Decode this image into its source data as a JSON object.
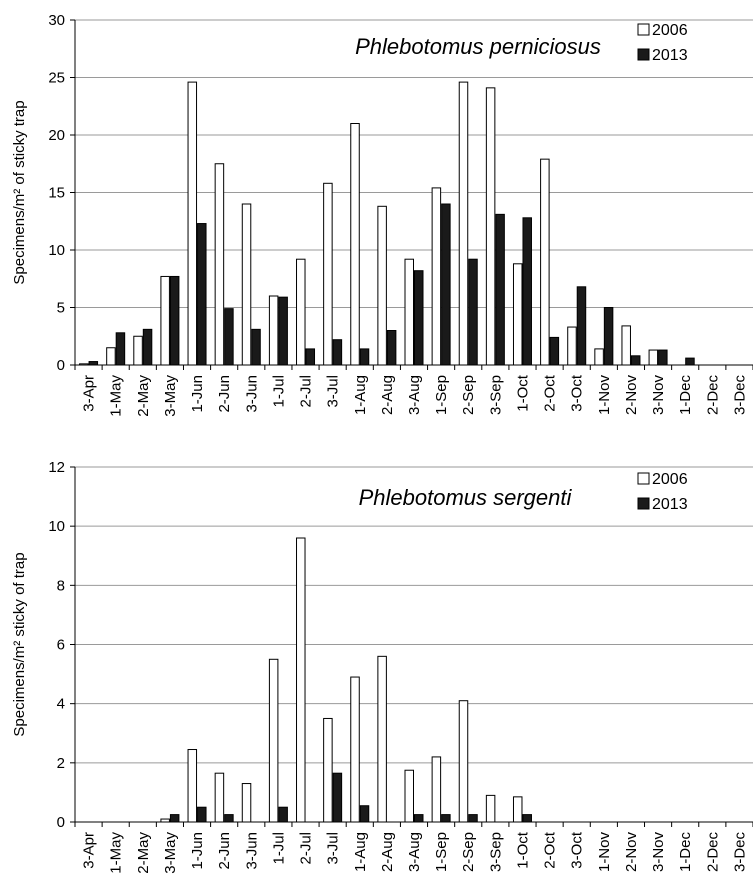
{
  "chart_data": [
    {
      "type": "bar",
      "title": "Phlebotomus perniciosus",
      "xlabel": "",
      "ylabel": "Specimens/m² of sticky trap",
      "ylim": [
        0,
        30
      ],
      "yticks": [
        0,
        5,
        10,
        15,
        20,
        25,
        30
      ],
      "grid": true,
      "legend": "top-right",
      "categories": [
        "3-Apr",
        "1-May",
        "2-May",
        "3-May",
        "1-Jun",
        "2-Jun",
        "3-Jun",
        "1-Jul",
        "2-Jul",
        "3-Jul",
        "1-Aug",
        "2-Aug",
        "3-Aug",
        "1-Sep",
        "2-Sep",
        "3-Sep",
        "1-Oct",
        "2-Oct",
        "3-Oct",
        "1-Nov",
        "2-Nov",
        "3-Nov",
        "1-Dec",
        "2-Dec",
        "3-Dec"
      ],
      "series": [
        {
          "name": "2006",
          "color": "#ffffff",
          "values": [
            0.1,
            1.5,
            2.5,
            7.7,
            24.6,
            17.5,
            14.0,
            6.0,
            9.2,
            15.8,
            21.0,
            13.8,
            9.2,
            15.4,
            24.6,
            24.1,
            8.8,
            17.9,
            3.3,
            1.4,
            3.4,
            1.3,
            0,
            0,
            0
          ]
        },
        {
          "name": "2013",
          "color": "#1a1a1a",
          "values": [
            0.3,
            2.8,
            3.1,
            7.7,
            12.3,
            4.9,
            3.1,
            5.9,
            1.4,
            2.2,
            1.4,
            3.0,
            8.2,
            14.0,
            9.2,
            13.1,
            12.8,
            2.4,
            6.8,
            5.0,
            0.8,
            1.3,
            0.6,
            0,
            0
          ]
        }
      ]
    },
    {
      "type": "bar",
      "title": "Phlebotomus sergenti",
      "xlabel": "",
      "ylabel": "Specimens/m² sticky of trap",
      "ylim": [
        0,
        12
      ],
      "yticks": [
        0,
        2,
        4,
        6,
        8,
        10,
        12
      ],
      "grid": true,
      "legend": "top-right",
      "categories": [
        "3-Apr",
        "1-May",
        "2-May",
        "3-May",
        "1-Jun",
        "2-Jun",
        "3-Jun",
        "1-Jul",
        "2-Jul",
        "3-Jul",
        "1-Aug",
        "2-Aug",
        "3-Aug",
        "1-Sep",
        "2-Sep",
        "3-Sep",
        "1-Oct",
        "2-Oct",
        "3-Oct",
        "1-Nov",
        "2-Nov",
        "3-Nov",
        "1-Dec",
        "2-Dec",
        "3-Dec"
      ],
      "series": [
        {
          "name": "2006",
          "color": "#ffffff",
          "values": [
            0,
            0,
            0,
            0.1,
            2.45,
            1.65,
            1.3,
            5.5,
            9.6,
            3.5,
            4.9,
            5.6,
            1.75,
            2.2,
            4.1,
            0.9,
            0.85,
            0,
            0,
            0,
            0,
            0,
            0,
            0,
            0
          ]
        },
        {
          "name": "2013",
          "color": "#1a1a1a",
          "values": [
            0,
            0,
            0,
            0.25,
            0.5,
            0.25,
            0,
            0.5,
            0,
            1.65,
            0.55,
            0,
            0.25,
            0.25,
            0.25,
            0,
            0.25,
            0,
            0,
            0,
            0,
            0,
            0,
            0,
            0
          ]
        }
      ]
    }
  ]
}
